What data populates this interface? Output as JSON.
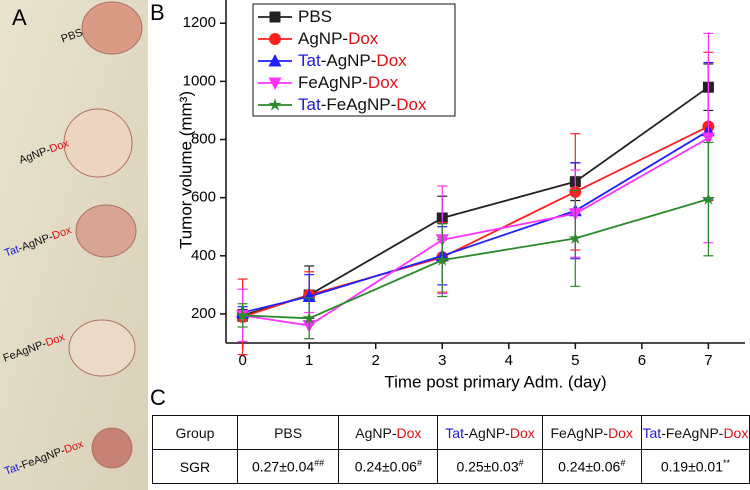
{
  "panel_labels": {
    "a": "A",
    "b": "B",
    "c": "C"
  },
  "photos": [
    [
      {
        "text": "PBS",
        "color": "#111111"
      }
    ],
    [
      {
        "text": "AgNP-",
        "color": "#111111"
      },
      {
        "text": "Dox",
        "color": "#e01010"
      }
    ],
    [
      {
        "text": "Tat",
        "color": "#1a1ae0"
      },
      {
        "text": "-AgNP-",
        "color": "#111111"
      },
      {
        "text": "Dox",
        "color": "#e01010"
      }
    ],
    [
      {
        "text": "FeAgNP-",
        "color": "#111111"
      },
      {
        "text": "Dox",
        "color": "#e01010"
      }
    ],
    [
      {
        "text": "Tat",
        "color": "#1a1ae0"
      },
      {
        "text": "-FeAgNP-",
        "color": "#111111"
      },
      {
        "text": "Dox",
        "color": "#e01010"
      }
    ]
  ],
  "chart_data": {
    "type": "line",
    "y_label": "Tumor volume (mm³)",
    "x_label": "Time post primary Adm. (day)",
    "x": [
      0,
      1,
      3,
      5,
      7
    ],
    "xlim": [
      -0.25,
      7.55
    ],
    "xticks": [
      0,
      1,
      2,
      3,
      4,
      5,
      6,
      7
    ],
    "ylim": [
      100,
      1280
    ],
    "yticks": [
      200,
      400,
      600,
      800,
      1000,
      1200
    ],
    "legend": "upper-left",
    "series": [
      {
        "name": [
          {
            "text": "PBS",
            "color": "#111111"
          }
        ],
        "color": "#222222",
        "marker": "square",
        "values": [
          195,
          265,
          530,
          655,
          980
        ],
        "errors": [
          20,
          100,
          75,
          65,
          80
        ]
      },
      {
        "name": [
          {
            "text": "AgNP-",
            "color": "#111111"
          },
          {
            "text": "Dox",
            "color": "#e01010"
          }
        ],
        "color": "#ff2020",
        "marker": "circle",
        "values": [
          190,
          265,
          395,
          620,
          845
        ],
        "errors": [
          130,
          80,
          120,
          200,
          255
        ]
      },
      {
        "name": [
          {
            "text": "Tat",
            "color": "#1a1ae0"
          },
          {
            "text": "-AgNP-",
            "color": "#111111"
          },
          {
            "text": "Dox",
            "color": "#e01010"
          }
        ],
        "color": "#2020ff",
        "marker": "triangle-up",
        "values": [
          205,
          260,
          400,
          555,
          830
        ],
        "errors": [
          20,
          75,
          100,
          165,
          235
        ]
      },
      {
        "name": [
          {
            "text": "FeAgNP-",
            "color": "#111111"
          },
          {
            "text": "Dox",
            "color": "#e01010"
          }
        ],
        "color": "#ff33ff",
        "marker": "triangle-down",
        "values": [
          195,
          160,
          455,
          545,
          805
        ],
        "errors": [
          90,
          45,
          185,
          150,
          360
        ]
      },
      {
        "name": [
          {
            "text": "Tat",
            "color": "#1a1ae0"
          },
          {
            "text": "-FeAgNP-",
            "color": "#111111"
          },
          {
            "text": "Dox",
            "color": "#e01010"
          }
        ],
        "color": "#2a8a2a",
        "marker": "star",
        "values": [
          195,
          185,
          385,
          460,
          595
        ],
        "errors": [
          40,
          70,
          125,
          165,
          195
        ]
      }
    ]
  },
  "table": {
    "header": [
      [
        {
          "text": "Group",
          "color": "#111111"
        }
      ],
      [
        {
          "text": "PBS",
          "color": "#111111"
        }
      ],
      [
        {
          "text": "AgNP-",
          "color": "#111111"
        },
        {
          "text": "Dox",
          "color": "#e01010"
        }
      ],
      [
        {
          "text": "Tat",
          "color": "#1a1ae0"
        },
        {
          "text": "-AgNP-",
          "color": "#111111"
        },
        {
          "text": "Dox",
          "color": "#e01010"
        }
      ],
      [
        {
          "text": "FeAgNP-",
          "color": "#111111"
        },
        {
          "text": "Dox",
          "color": "#e01010"
        }
      ],
      [
        {
          "text": "Tat",
          "color": "#1a1ae0"
        },
        {
          "text": "-FeAgNP-",
          "color": "#111111"
        },
        {
          "text": "Dox",
          "color": "#e01010"
        }
      ]
    ],
    "rows": [
      [
        {
          "text": "SGR",
          "sup": ""
        },
        {
          "text": "0.27±0.04",
          "sup": "##"
        },
        {
          "text": "0.24±0.06",
          "sup": "#"
        },
        {
          "text": "0.25±0.03",
          "sup": "#"
        },
        {
          "text": "0.24±0.06",
          "sup": "#"
        },
        {
          "text": "0.19±0.01",
          "sup": "**"
        }
      ]
    ]
  }
}
